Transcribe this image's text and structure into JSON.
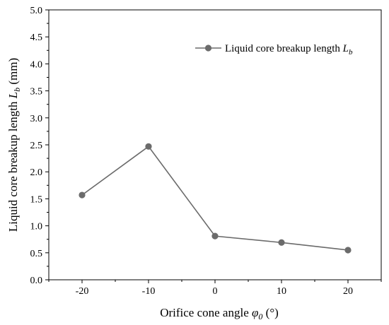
{
  "chart_data": {
    "type": "line",
    "x": [
      -20,
      -10,
      0,
      10,
      20
    ],
    "series": [
      {
        "name": "Liquid core breakup length L_b",
        "name_text": "Liquid core breakup length ",
        "name_symbol": "L",
        "name_subscript": "b",
        "values": [
          1.57,
          2.47,
          0.81,
          0.69,
          0.55
        ],
        "color": "#6b6b6b"
      }
    ],
    "xlabel_text": "Orifice cone angle ",
    "xlabel_symbol": "φ",
    "xlabel_subscript": "0",
    "xlabel_unit": " (°)",
    "ylabel_text": "Liquid core breakup length ",
    "ylabel_symbol": "L",
    "ylabel_subscript": "b",
    "ylabel_unit": " (mm)",
    "xlim": [
      -25,
      25
    ],
    "ylim": [
      0,
      5
    ],
    "xticks": [
      "-20",
      "-10",
      "0",
      "10",
      "20"
    ],
    "xtick_values": [
      -20,
      -10,
      0,
      10,
      20
    ],
    "yticks": [
      "0.0",
      "0.5",
      "1.0",
      "1.5",
      "2.0",
      "2.5",
      "3.0",
      "3.5",
      "4.0",
      "4.5",
      "5.0"
    ],
    "ytick_values": [
      0,
      0.5,
      1,
      1.5,
      2,
      2.5,
      3,
      3.5,
      4,
      4.5,
      5
    ],
    "grid": false,
    "legend_position": "top-right"
  }
}
